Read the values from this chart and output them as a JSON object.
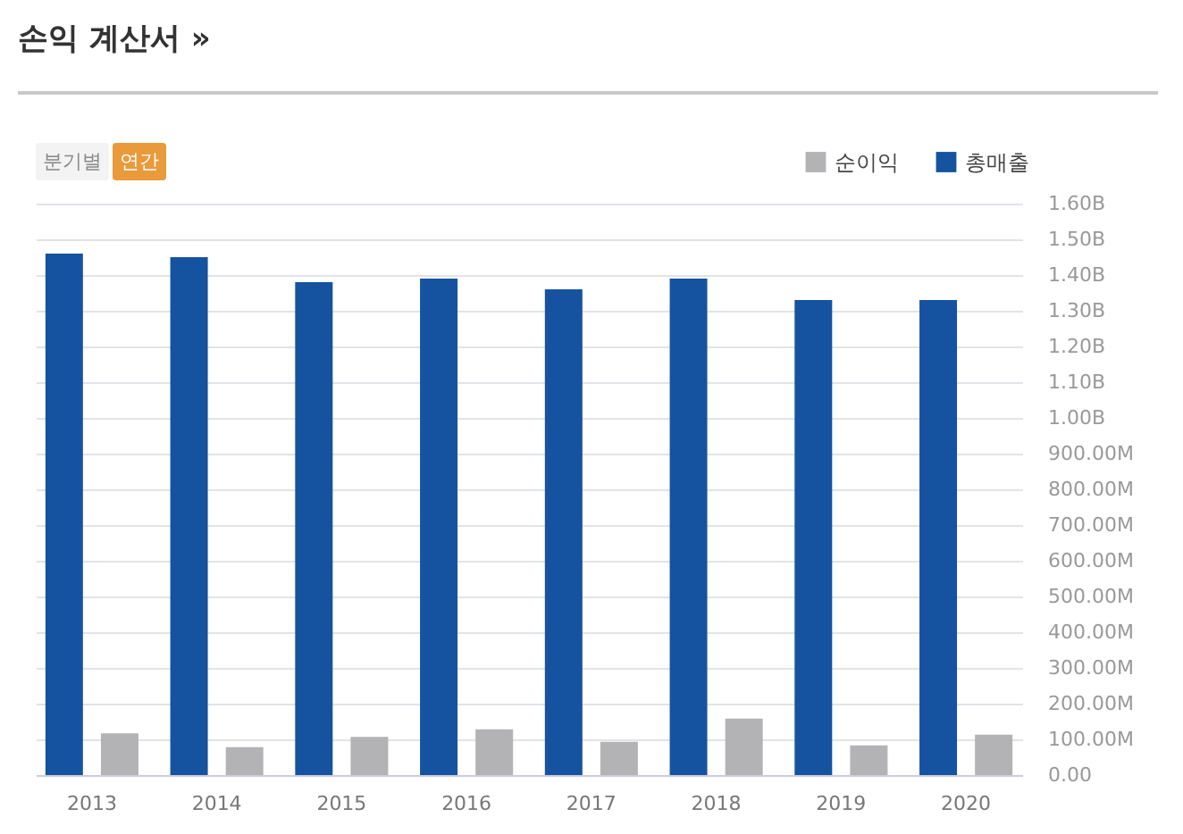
{
  "chart_data": {
    "type": "bar",
    "title": "손익 계산서 »",
    "annotations": [
      "분기별",
      "연간"
    ],
    "categories": [
      "2013",
      "2014",
      "2015",
      "2016",
      "2017",
      "2018",
      "2019",
      "2020"
    ],
    "series": [
      {
        "name": "순이익",
        "color": "#b3b2b4",
        "values": [
          117000000,
          78000000,
          107000000,
          128000000,
          93000000,
          158000000,
          83000000,
          113000000
        ]
      },
      {
        "name": "총매출",
        "color": "#1553a0",
        "values": [
          1460000000,
          1450000000,
          1380000000,
          1390000000,
          1360000000,
          1390000000,
          1330000000,
          1330000000
        ]
      }
    ],
    "ylim": [
      0,
      1600000000
    ],
    "yticks": [
      {
        "value": 0,
        "label": "0.00"
      },
      {
        "value": 100000000,
        "label": "100.00M"
      },
      {
        "value": 200000000,
        "label": "200.00M"
      },
      {
        "value": 300000000,
        "label": "300.00M"
      },
      {
        "value": 400000000,
        "label": "400.00M"
      },
      {
        "value": 500000000,
        "label": "500.00M"
      },
      {
        "value": 600000000,
        "label": "600.00M"
      },
      {
        "value": 700000000,
        "label": "700.00M"
      },
      {
        "value": 800000000,
        "label": "800.00M"
      },
      {
        "value": 900000000,
        "label": "900.00M"
      },
      {
        "value": 1000000000,
        "label": "1.00B"
      },
      {
        "value": 1100000000,
        "label": "1.10B"
      },
      {
        "value": 1200000000,
        "label": "1.20B"
      },
      {
        "value": 1300000000,
        "label": "1.30B"
      },
      {
        "value": 1400000000,
        "label": "1.40B"
      },
      {
        "value": 1500000000,
        "label": "1.50B"
      },
      {
        "value": 1600000000,
        "label": "1.60B"
      }
    ],
    "grid": "y",
    "legend": "top right"
  }
}
